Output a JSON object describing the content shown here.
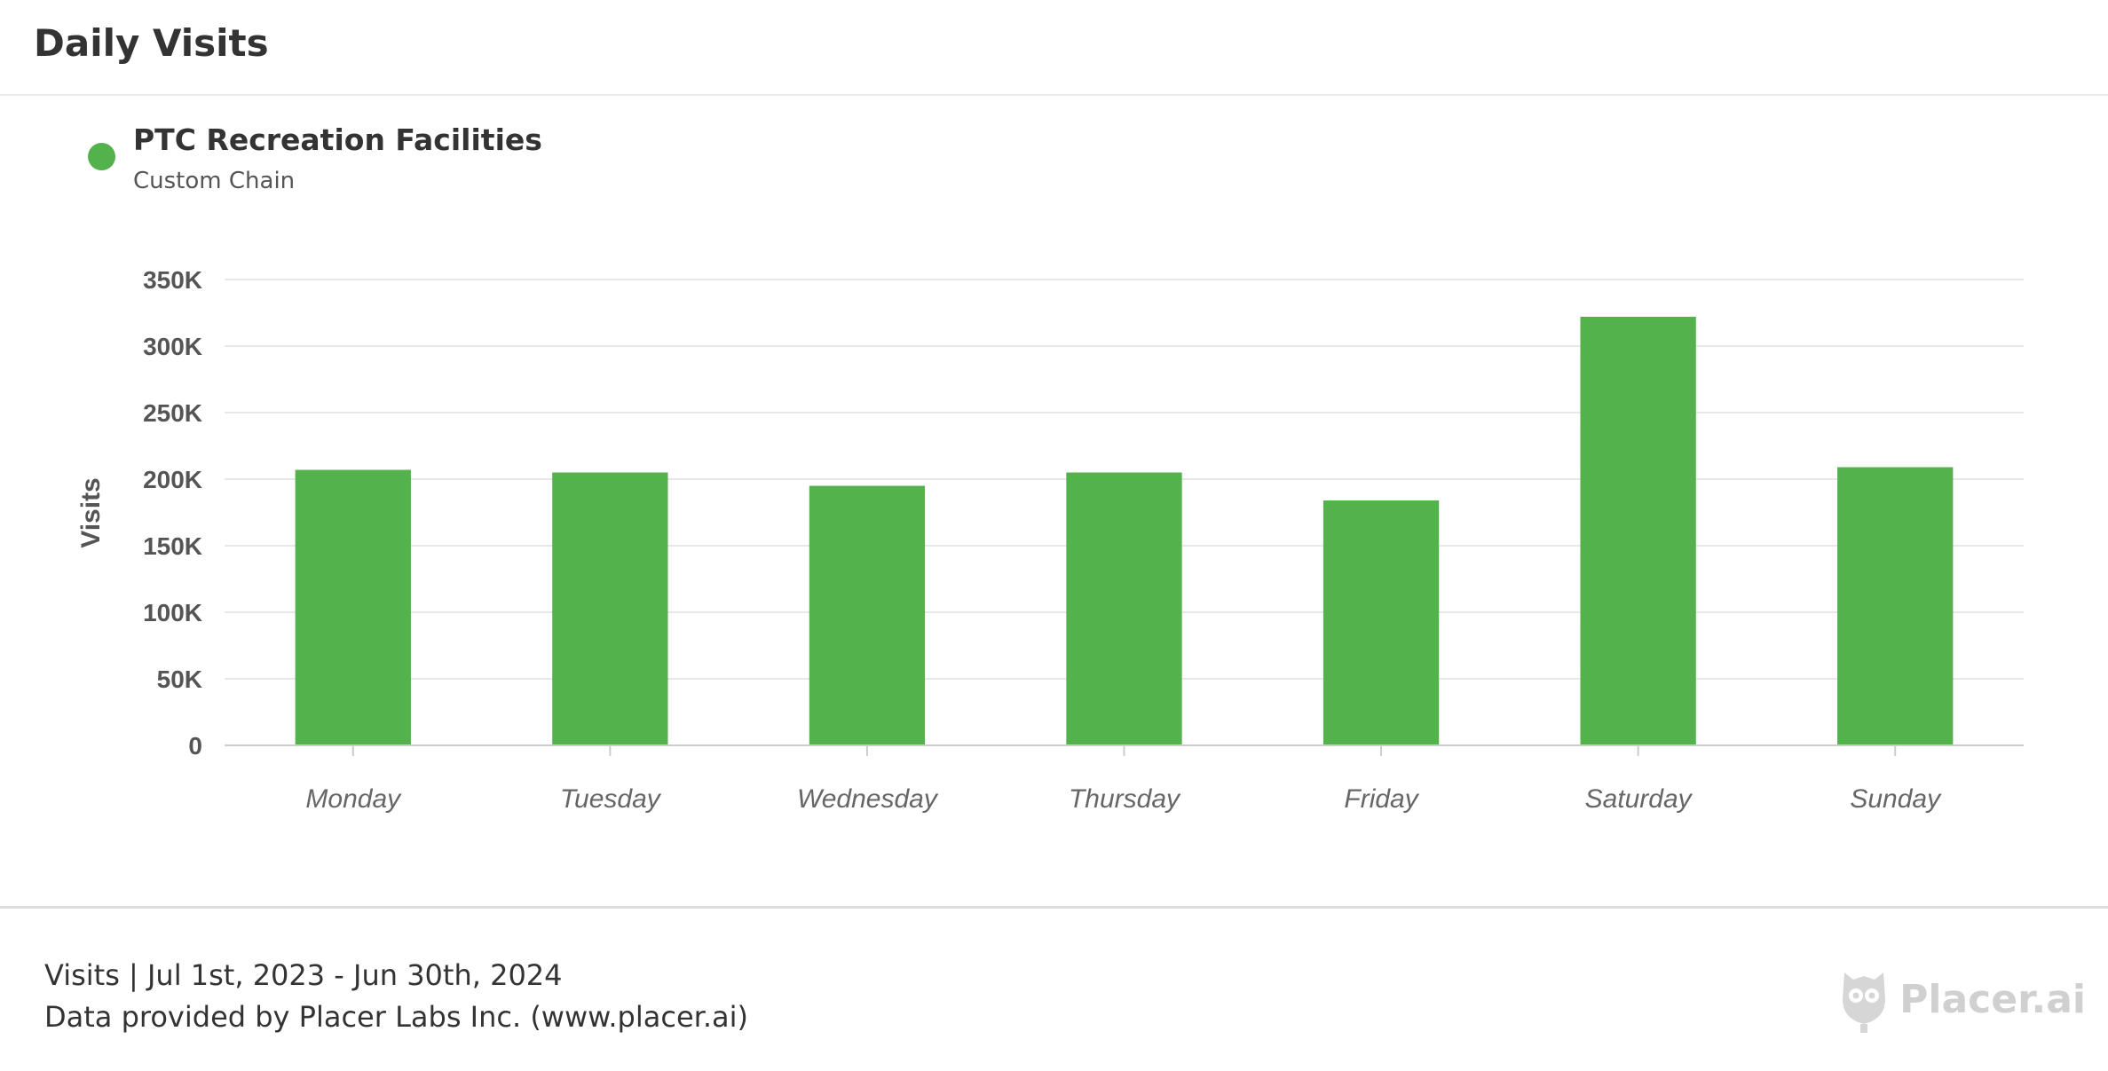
{
  "header": {
    "title": "Daily Visits"
  },
  "legend": {
    "name": "PTC Recreation Facilities",
    "subtitle": "Custom Chain",
    "color": "#54b24d"
  },
  "chart_data": {
    "type": "bar",
    "categories": [
      "Monday",
      "Tuesday",
      "Wednesday",
      "Thursday",
      "Friday",
      "Saturday",
      "Sunday"
    ],
    "series": [
      {
        "name": "PTC Recreation Facilities",
        "values": [
          207000,
          205000,
          195000,
          205000,
          184000,
          322000,
          209000
        ]
      }
    ],
    "ylabel": "Visits",
    "ylim": [
      0,
      350000
    ],
    "yticks": [
      0,
      50000,
      100000,
      150000,
      200000,
      250000,
      300000,
      350000
    ],
    "ytick_labels": [
      "0",
      "50K",
      "100K",
      "150K",
      "200K",
      "250K",
      "300K",
      "350K"
    ],
    "grid": true,
    "bar_color": "#54b24d"
  },
  "footer": {
    "line1": "Visits | Jul 1st, 2023 - Jun 30th, 2024",
    "line2": "Data provided by Placer Labs Inc. (www.placer.ai)",
    "brand": "Placer.ai",
    "brand_icon": "owl-logo-icon"
  }
}
